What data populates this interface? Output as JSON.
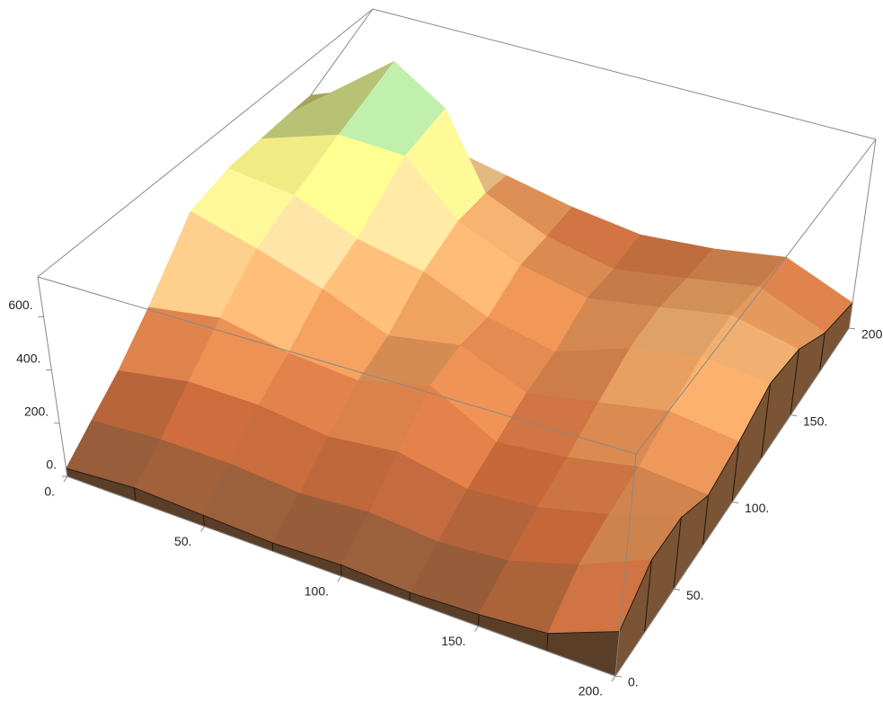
{
  "chart_data": {
    "type": "surface",
    "x": [
      0,
      25,
      50,
      75,
      100,
      125,
      150,
      175,
      200
    ],
    "y": [
      0,
      25,
      50,
      75,
      100,
      125,
      150,
      175,
      200
    ],
    "z": [
      [
        30,
        50,
        40,
        30,
        40,
        30,
        40,
        60,
        150
      ],
      [
        60,
        80,
        80,
        60,
        80,
        60,
        80,
        150,
        250
      ],
      [
        100,
        150,
        150,
        120,
        150,
        100,
        120,
        180,
        250
      ],
      [
        200,
        250,
        200,
        180,
        250,
        120,
        150,
        200,
        180
      ],
      [
        450,
        380,
        300,
        200,
        250,
        150,
        200,
        250,
        220
      ],
      [
        480,
        450,
        350,
        300,
        200,
        150,
        250,
        300,
        280
      ],
      [
        450,
        560,
        550,
        350,
        250,
        200,
        250,
        300,
        250
      ],
      [
        400,
        740,
        600,
        300,
        200,
        150,
        200,
        250,
        150
      ],
      [
        300,
        450,
        250,
        200,
        150,
        120,
        150,
        200,
        100
      ]
    ],
    "xlim": [
      0,
      200
    ],
    "ylim": [
      0,
      200
    ],
    "zlim": [
      0,
      750
    ],
    "xticks": [
      {
        "value": 0,
        "label": "0."
      },
      {
        "value": 50,
        "label": "50."
      },
      {
        "value": 100,
        "label": "100."
      },
      {
        "value": 150,
        "label": "150."
      },
      {
        "value": 200,
        "label": "200."
      }
    ],
    "yticks": [
      {
        "value": 0,
        "label": "0."
      },
      {
        "value": 50,
        "label": "50."
      },
      {
        "value": 100,
        "label": "100."
      },
      {
        "value": 150,
        "label": "150."
      },
      {
        "value": 200,
        "label": "200."
      }
    ],
    "zticks": [
      {
        "value": 0,
        "label": "0."
      },
      {
        "value": 200,
        "label": "200."
      },
      {
        "value": 400,
        "label": "400."
      },
      {
        "value": 600,
        "label": "600."
      }
    ],
    "colorscale": [
      "#6e5238",
      "#c8683a",
      "#e8a060",
      "#f2d29a",
      "#f0ee80",
      "#a8d8a0",
      "#70a8e0"
    ],
    "grid": false
  }
}
